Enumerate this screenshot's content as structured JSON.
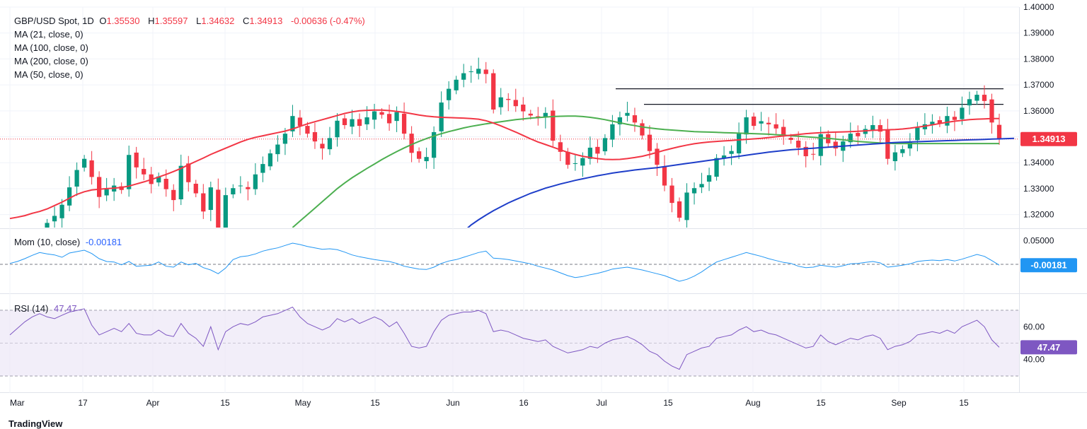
{
  "legend": {
    "symbol": "GBP/USD Spot, 1D",
    "o_label": "O",
    "open": "1.35530",
    "h_label": "H",
    "high": "1.35597",
    "l_label": "L",
    "low": "1.34632",
    "c_label": "C",
    "close": "1.34913",
    "change": "-0.00636 (-0.47%)",
    "ma21": "MA (21, close, 0)",
    "ma100": "MA (100, close, 0)",
    "ma200": "MA (200, close, 0)",
    "ma50": "MA (50, close, 0)",
    "mom_label": "Mom (10, close)",
    "mom_value": "-0.00181",
    "rsi_label": "RSI (14)",
    "rsi_value": "47.47"
  },
  "brand": "TradingView",
  "colors": {
    "up": "#089981",
    "down": "#f23645",
    "ma21": "#f23645",
    "ma50": "#4caf50",
    "ma100": "#1e3ec9",
    "mom": "#2196f3",
    "rsi": "#7e57c2",
    "rsi_band": "#ede7f6"
  },
  "chart_data": [
    {
      "type": "candlestick",
      "title": "GBP/USD Spot, 1D",
      "ylim": [
        1.315,
        1.4
      ],
      "y_ticks": [
        "1.32000",
        "1.33000",
        "1.34000",
        "1.35000",
        "1.36000",
        "1.37000",
        "1.38000",
        "1.39000",
        "1.40000"
      ],
      "x_ticks": [
        "Mar",
        "17",
        "Apr",
        "15",
        "May",
        "15",
        "Jun",
        "16",
        "Jul",
        "15",
        "Aug",
        "15",
        "Sep",
        "15"
      ],
      "last_price_label": "1.34913",
      "last_price": 1.34913,
      "resistance_levels": [
        1.3685,
        1.3625
      ],
      "closes": [
        1.3045,
        1.3072,
        1.3098,
        1.3085,
        1.312,
        1.3168,
        1.3195,
        1.3238,
        1.3305,
        1.3372,
        1.3415,
        1.3345,
        1.3268,
        1.3298,
        1.3312,
        1.3295,
        1.343,
        1.3382,
        1.3355,
        1.3318,
        1.3347,
        1.3298,
        1.3256,
        1.3388,
        1.3325,
        1.3282,
        1.3212,
        1.3305,
        1.3132,
        1.3275,
        1.3302,
        1.3312,
        1.3298,
        1.3355,
        1.3395,
        1.3436,
        1.347,
        1.3512,
        1.358,
        1.3542,
        1.3512,
        1.3482,
        1.3455,
        1.3495,
        1.3562,
        1.3545,
        1.3568,
        1.3542,
        1.3575,
        1.3598,
        1.3585,
        1.3552,
        1.3595,
        1.3512,
        1.3438,
        1.3415,
        1.3422,
        1.3518,
        1.3632,
        1.3685,
        1.372,
        1.3745,
        1.3752,
        1.3762,
        1.3742,
        1.3605,
        1.3652,
        1.3642,
        1.3618,
        1.3598,
        1.3582,
        1.3572,
        1.3592,
        1.3485,
        1.3442,
        1.3392,
        1.3398,
        1.3418,
        1.3458,
        1.3435,
        1.3495,
        1.3548,
        1.3575,
        1.3592,
        1.3555,
        1.3505,
        1.3445,
        1.3392,
        1.3312,
        1.3245,
        1.3188,
        1.3285,
        1.3302,
        1.3318,
        1.3352,
        1.3418,
        1.3428,
        1.3445,
        1.3512,
        1.3575,
        1.3542,
        1.356,
        1.3548,
        1.3532,
        1.3505,
        1.3488,
        1.3458,
        1.3425,
        1.3432,
        1.351,
        1.3475,
        1.3455,
        1.3482,
        1.3512,
        1.3502,
        1.353,
        1.3545,
        1.352,
        1.3415,
        1.344,
        1.3452,
        1.3478,
        1.3535,
        1.3548,
        1.3558,
        1.3552,
        1.358,
        1.3565,
        1.3612,
        1.3645,
        1.3662,
        1.3638,
        1.3555,
        1.3491
      ],
      "ma21": [
        1.3185,
        1.319,
        1.3196,
        1.3205,
        1.3212,
        1.3222,
        1.3235,
        1.3248,
        1.3263,
        1.3278,
        1.3288,
        1.3295,
        1.3298,
        1.33,
        1.3302,
        1.3305,
        1.331,
        1.3318,
        1.3326,
        1.3335,
        1.3345,
        1.3355,
        1.3366,
        1.3378,
        1.3392,
        1.3405,
        1.3418,
        1.3432,
        1.3444,
        1.3456,
        1.3468,
        1.348,
        1.349,
        1.3498,
        1.3504,
        1.351,
        1.3516,
        1.3522,
        1.353,
        1.354,
        1.355,
        1.3558,
        1.3566,
        1.3574,
        1.3582,
        1.359,
        1.3596,
        1.36,
        1.3602,
        1.3603,
        1.3603,
        1.3601,
        1.3598,
        1.3594,
        1.3589,
        1.3584,
        1.358,
        1.3577,
        1.3575,
        1.3574,
        1.3573,
        1.3572,
        1.357,
        1.3568,
        1.3562,
        1.3553,
        1.3542,
        1.353,
        1.3518,
        1.3505,
        1.3492,
        1.348,
        1.347,
        1.346,
        1.345,
        1.344,
        1.3432,
        1.3425,
        1.342,
        1.3416,
        1.3413,
        1.3412,
        1.3413,
        1.3416,
        1.342,
        1.3425,
        1.3432,
        1.344,
        1.3448,
        1.3455,
        1.3462,
        1.3468,
        1.3473,
        1.3477,
        1.348,
        1.3482,
        1.3484,
        1.3486,
        1.3488,
        1.349,
        1.3492,
        1.3494,
        1.3497,
        1.35,
        1.3503,
        1.3506,
        1.3509,
        1.3512,
        1.3514,
        1.3516,
        1.3517,
        1.3518,
        1.3519,
        1.352,
        1.3521,
        1.3523,
        1.3525,
        1.3526,
        1.3527,
        1.3528,
        1.353,
        1.3533,
        1.3537,
        1.3541,
        1.3546,
        1.3551,
        1.3556,
        1.356,
        1.3563,
        1.3566,
        1.3568,
        1.3569,
        1.357,
        1.357
      ],
      "ma50": [
        null,
        null,
        null,
        null,
        null,
        null,
        null,
        null,
        null,
        null,
        null,
        null,
        null,
        null,
        null,
        null,
        null,
        null,
        null,
        null,
        null,
        null,
        null,
        null,
        null,
        null,
        null,
        null,
        null,
        null,
        null,
        null,
        null,
        null,
        null,
        null,
        null,
        null,
        1.315,
        1.3175,
        1.32,
        1.3225,
        1.325,
        1.3275,
        1.33,
        1.3322,
        1.3342,
        1.336,
        1.3378,
        1.3395,
        1.3412,
        1.3428,
        1.3443,
        1.3457,
        1.347,
        1.3482,
        1.3493,
        1.3503,
        1.3512,
        1.352,
        1.3527,
        1.3534,
        1.354,
        1.3545,
        1.355,
        1.3554,
        1.3558,
        1.3562,
        1.3566,
        1.3569,
        1.3572,
        1.3574,
        1.3576,
        1.3578,
        1.3579,
        1.358,
        1.358,
        1.3578,
        1.3575,
        1.3571,
        1.3566,
        1.356,
        1.3554,
        1.3548,
        1.3543,
        1.3538,
        1.3534,
        1.3531,
        1.3528,
        1.3526,
        1.3524,
        1.3522,
        1.352,
        1.3519,
        1.3518,
        1.3517,
        1.3516,
        1.3515,
        1.3514,
        1.3513,
        1.3512,
        1.3511,
        1.351,
        1.3508,
        1.3506,
        1.3504,
        1.3502,
        1.35,
        1.3498,
        1.3496,
        1.3494,
        1.3491,
        1.3488,
        1.3485,
        1.3482,
        1.348,
        1.3478,
        1.3476,
        1.3475,
        1.3474,
        1.3474,
        1.3474,
        1.3474,
        1.3474,
        1.3474,
        1.3474,
        1.3474,
        1.3474,
        1.3474,
        1.3474,
        1.3474,
        1.3474,
        1.3474,
        1.3474
      ],
      "ma100": [
        null,
        null,
        null,
        null,
        null,
        null,
        null,
        null,
        null,
        null,
        null,
        null,
        null,
        null,
        null,
        null,
        null,
        null,
        null,
        null,
        null,
        null,
        null,
        null,
        null,
        null,
        null,
        null,
        null,
        null,
        null,
        null,
        null,
        null,
        null,
        null,
        null,
        null,
        null,
        null,
        null,
        null,
        null,
        null,
        null,
        null,
        null,
        null,
        null,
        null,
        null,
        null,
        null,
        null,
        null,
        null,
        null,
        null,
        null,
        null,
        null,
        1.3135,
        1.316,
        1.318,
        1.3198,
        1.3215,
        1.323,
        1.3245,
        1.3258,
        1.327,
        1.3282,
        1.3292,
        1.3302,
        1.331,
        1.3318,
        1.3325,
        1.3332,
        1.3338,
        1.3344,
        1.335,
        1.3355,
        1.336,
        1.3364,
        1.3368,
        1.3372,
        1.3375,
        1.3378,
        1.3381,
        1.3385,
        1.3389,
        1.3393,
        1.3397,
        1.3401,
        1.3405,
        1.3409,
        1.3413,
        1.3417,
        1.3421,
        1.3425,
        1.3429,
        1.3433,
        1.3437,
        1.3441,
        1.3444,
        1.3447,
        1.345,
        1.3452,
        1.3454,
        1.3456,
        1.3458,
        1.346,
        1.3462,
        1.3464,
        1.3466,
        1.3468,
        1.347,
        1.3472,
        1.3474,
        1.3476,
        1.3478,
        1.3479,
        1.348,
        1.3481,
        1.3482,
        1.3483,
        1.3484,
        1.3485,
        1.3486,
        1.3487,
        1.3488,
        1.3489,
        1.349,
        1.3491,
        1.3492,
        1.3493,
        1.3494
      ]
    },
    {
      "type": "line",
      "title": "Mom (10, close)",
      "ylim": [
        -0.06,
        0.075
      ],
      "y_ticks": [
        "0.05000"
      ],
      "zero_line": 0,
      "last_value_label": "-0.00181",
      "values": [
        0.002,
        0.006,
        0.012,
        0.019,
        0.025,
        0.022,
        0.02,
        0.015,
        0.024,
        0.027,
        0.03,
        0.023,
        0.012,
        0.006,
        0.005,
        -0.001,
        0.006,
        -0.004,
        -0.003,
        -0.002,
        0.005,
        -0.004,
        -0.006,
        0.005,
        -0.001,
        0.002,
        -0.007,
        -0.012,
        -0.02,
        -0.008,
        0.01,
        0.016,
        0.018,
        0.022,
        0.028,
        0.032,
        0.035,
        0.04,
        0.045,
        0.042,
        0.038,
        0.035,
        0.032,
        0.033,
        0.031,
        0.026,
        0.02,
        0.016,
        0.013,
        0.01,
        0.008,
        0.006,
        0.002,
        -0.004,
        -0.007,
        -0.01,
        -0.011,
        -0.006,
        0.002,
        0.007,
        0.01,
        0.015,
        0.02,
        0.025,
        0.028,
        0.013,
        0.012,
        0.01,
        0.007,
        0.004,
        0.001,
        -0.004,
        -0.008,
        -0.012,
        -0.018,
        -0.024,
        -0.028,
        -0.026,
        -0.022,
        -0.019,
        -0.015,
        -0.01,
        -0.008,
        -0.006,
        -0.009,
        -0.012,
        -0.016,
        -0.02,
        -0.024,
        -0.03,
        -0.036,
        -0.032,
        -0.025,
        -0.016,
        -0.005,
        0.005,
        0.01,
        0.015,
        0.02,
        0.025,
        0.021,
        0.017,
        0.012,
        0.008,
        0.004,
        0.002,
        -0.004,
        -0.007,
        -0.006,
        -0.002,
        -0.004,
        -0.006,
        -0.003,
        0.001,
        0.002,
        0.004,
        0.006,
        0.003,
        -0.006,
        -0.004,
        -0.002,
        0.001,
        0.006,
        0.008,
        0.009,
        0.008,
        0.01,
        0.007,
        0.011,
        0.016,
        0.021,
        0.017,
        0.008,
        -0.00181
      ]
    },
    {
      "type": "line",
      "title": "RSI (14)",
      "ylim": [
        20,
        80
      ],
      "y_ticks": [
        "40.00",
        "60.00"
      ],
      "band": [
        30,
        70
      ],
      "mid_line": 50,
      "last_value_label": "47.47",
      "values": [
        55,
        59,
        63,
        66,
        68,
        66,
        65,
        67,
        69,
        70,
        71,
        61,
        55,
        57,
        59,
        57,
        62,
        56,
        55,
        55,
        58,
        55,
        54,
        62,
        56,
        53,
        48,
        60,
        46,
        57,
        60,
        62,
        61,
        63,
        66,
        67,
        68,
        70,
        72,
        66,
        62,
        60,
        58,
        60,
        65,
        63,
        65,
        62,
        64,
        66,
        64,
        60,
        63,
        56,
        48,
        47,
        48,
        57,
        64,
        67,
        68,
        69,
        69,
        70,
        68,
        57,
        58,
        57,
        55,
        53,
        52,
        51,
        52,
        48,
        46,
        44,
        45,
        46,
        48,
        47,
        50,
        52,
        53,
        54,
        52,
        49,
        45,
        43,
        39,
        36,
        34,
        43,
        45,
        47,
        48,
        53,
        54,
        55,
        58,
        60,
        57,
        58,
        56,
        55,
        53,
        51,
        49,
        47,
        48,
        55,
        51,
        49,
        51,
        53,
        52,
        54,
        55,
        53,
        46,
        48,
        49,
        51,
        55,
        56,
        57,
        56,
        58,
        56,
        60,
        62,
        64,
        60,
        52,
        47.47
      ]
    }
  ]
}
